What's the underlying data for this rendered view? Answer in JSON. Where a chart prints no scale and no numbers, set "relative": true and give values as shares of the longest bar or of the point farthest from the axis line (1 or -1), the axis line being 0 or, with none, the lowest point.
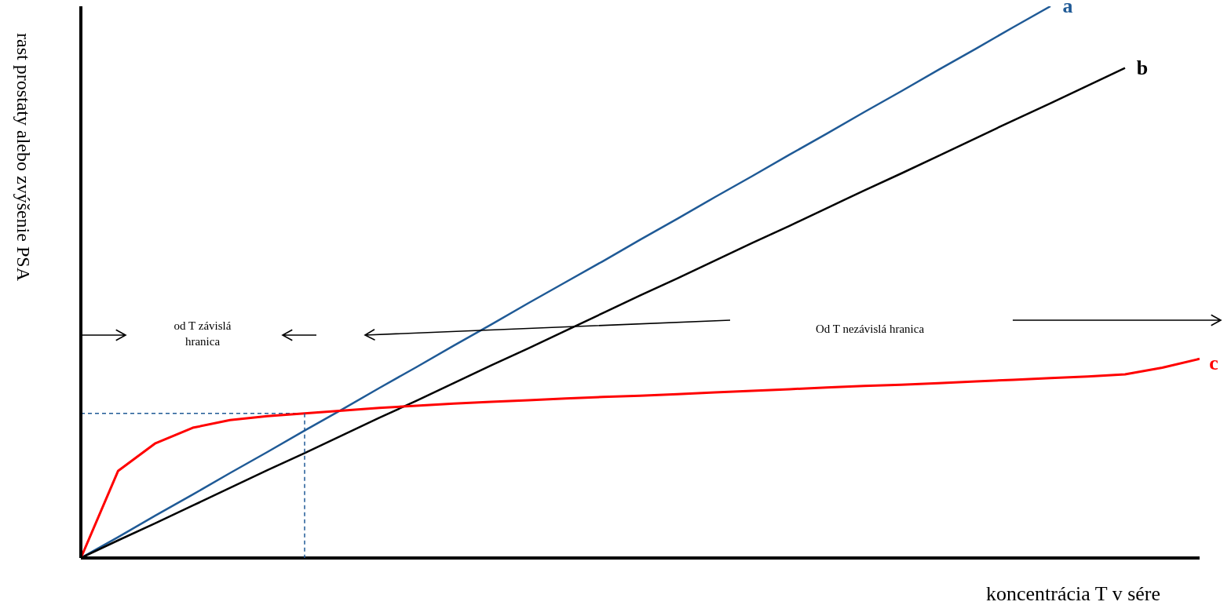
{
  "chart_data": {
    "type": "line",
    "xlabel": "koncentrácia  T v sére",
    "ylabel": "rast prostaty alebo zvýšenie PSA",
    "relative": true,
    "line_style": "solid",
    "categories": [
      null,
      null,
      null,
      null,
      null,
      null,
      null,
      null,
      null,
      null,
      null,
      null,
      null,
      null,
      null,
      null,
      null,
      null,
      null,
      null,
      null,
      null,
      null,
      null,
      null,
      null,
      null,
      null,
      null,
      null,
      null
    ],
    "series": [
      {
        "name": "a",
        "color": "#1f5a96",
        "values": [
          0,
          0.038,
          0.077,
          0.115,
          0.154,
          0.192,
          0.231,
          0.269,
          0.308,
          0.346,
          0.385,
          0.423,
          0.462,
          0.5,
          0.538,
          0.577,
          0.615,
          0.654,
          0.692,
          0.731,
          0.769,
          0.808,
          0.846,
          0.885,
          0.923,
          0.962,
          1,
          null,
          null,
          null,
          null
        ]
      },
      {
        "name": "b",
        "color": "#000000",
        "values": [
          0,
          0.032,
          0.063,
          0.095,
          0.127,
          0.159,
          0.19,
          0.222,
          0.254,
          0.285,
          0.317,
          0.349,
          0.38,
          0.412,
          0.444,
          0.476,
          0.507,
          0.539,
          0.571,
          0.602,
          0.634,
          0.666,
          0.697,
          0.729,
          0.761,
          0.793,
          0.824,
          0.856,
          0.888,
          null,
          null
        ]
      },
      {
        "name": "c",
        "color": "#ff0000",
        "values": [
          0,
          0.158,
          0.208,
          0.236,
          0.25,
          0.257,
          0.262,
          0.267,
          0.272,
          0.276,
          0.28,
          0.283,
          0.286,
          0.289,
          0.292,
          0.294,
          0.297,
          0.3,
          0.303,
          0.306,
          0.309,
          0.312,
          0.314,
          0.317,
          0.32,
          0.323,
          0.326,
          0.329,
          0.333,
          0.345,
          0.361
        ]
      }
    ],
    "ref_lines": [
      {
        "axis": "y",
        "value": 0.262,
        "color": "#1f5a96",
        "line_style": "dashed"
      }
    ],
    "annotations": [
      "od T závislá\nhranica",
      "Od T nezávislá hranica"
    ]
  }
}
